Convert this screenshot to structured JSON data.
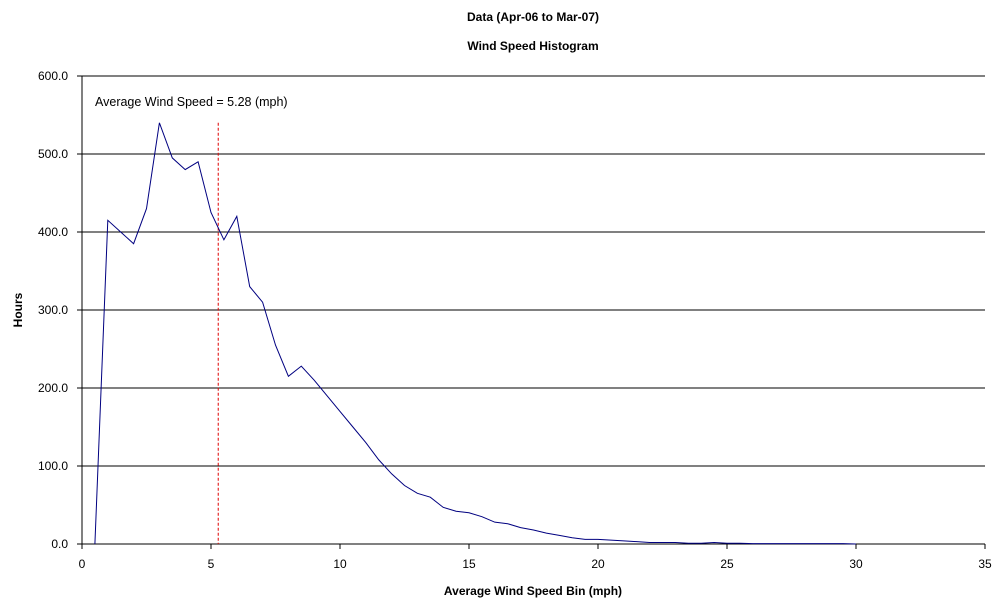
{
  "chart_data": {
    "type": "line",
    "title": "Data (Apr-06 to Mar-07)",
    "subtitle": "Wind Speed Histogram",
    "xlabel": "Average Wind Speed Bin (mph)",
    "ylabel": "Hours",
    "xlim": [
      0,
      35
    ],
    "ylim": [
      0,
      600
    ],
    "x_ticks": [
      0,
      5,
      10,
      15,
      20,
      25,
      30,
      35
    ],
    "x_tick_labels": [
      "0",
      "5",
      "10",
      "15",
      "20",
      "25",
      "30",
      "35"
    ],
    "y_ticks": [
      0,
      100,
      200,
      300,
      400,
      500,
      600
    ],
    "y_tick_labels": [
      "0.0",
      "100.0",
      "200.0",
      "300.0",
      "400.0",
      "500.0",
      "600.0"
    ],
    "grid": "horizontal",
    "legend": "none",
    "annotation": "Average Wind Speed = 5.28 (mph)",
    "average_x": 5.28,
    "series": [
      {
        "color": "#000080",
        "x": [
          0.5,
          1.0,
          1.5,
          2.0,
          2.5,
          3.0,
          3.5,
          4.0,
          4.5,
          5.0,
          5.5,
          6.0,
          6.5,
          7.0,
          7.5,
          8.0,
          8.5,
          9.0,
          9.5,
          10.0,
          10.5,
          11.0,
          11.5,
          12.0,
          12.5,
          13.0,
          13.5,
          14.0,
          14.5,
          15.0,
          15.5,
          16.0,
          16.5,
          17.0,
          17.5,
          18.0,
          18.5,
          19.0,
          19.5,
          20.0,
          20.5,
          21.0,
          21.5,
          22.0,
          22.5,
          23.0,
          23.5,
          24.0,
          24.5,
          25.0,
          25.5,
          26.0,
          26.5,
          27.0,
          27.5,
          28.0,
          28.5,
          29.0,
          29.5,
          30.0
        ],
        "values": [
          0,
          415,
          400,
          385,
          430,
          540,
          495,
          480,
          490,
          425,
          390,
          420,
          330,
          310,
          255,
          215,
          228,
          210,
          190,
          170,
          150,
          130,
          108,
          90,
          75,
          65,
          60,
          47,
          42,
          40,
          35,
          28,
          26,
          21,
          18,
          14,
          11,
          8,
          6,
          6,
          5,
          4,
          3,
          2,
          2,
          2,
          1,
          1,
          2,
          1,
          1,
          0.5,
          0.5,
          0.5,
          0.5,
          0.5,
          0.5,
          0.5,
          0.5,
          0
        ]
      }
    ],
    "average_line_color": "#e00000"
  }
}
